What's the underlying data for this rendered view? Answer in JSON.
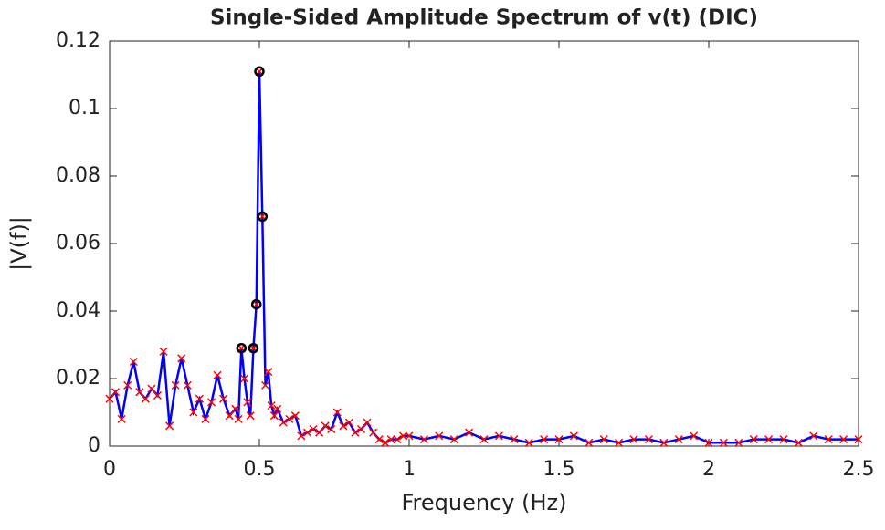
{
  "chart_data": {
    "type": "line",
    "title": "Single-Sided Amplitude Spectrum of v(t) (DIC)",
    "xlabel": "Frequency (Hz)",
    "ylabel": "|V(f)|",
    "x": [
      0,
      0.02,
      0.04,
      0.06,
      0.08,
      0.1,
      0.12,
      0.14,
      0.16,
      0.18,
      0.2,
      0.22,
      0.24,
      0.26,
      0.28,
      0.3,
      0.32,
      0.34,
      0.36,
      0.38,
      0.4,
      0.42,
      0.43,
      0.44,
      0.45,
      0.46,
      0.47,
      0.48,
      0.49,
      0.5,
      0.51,
      0.52,
      0.53,
      0.54,
      0.55,
      0.56,
      0.58,
      0.6,
      0.62,
      0.64,
      0.66,
      0.68,
      0.7,
      0.72,
      0.74,
      0.76,
      0.78,
      0.8,
      0.82,
      0.84,
      0.86,
      0.88,
      0.9,
      0.92,
      0.94,
      0.96,
      0.98,
      1,
      1.05,
      1.1,
      1.15,
      1.2,
      1.25,
      1.3,
      1.35,
      1.4,
      1.45,
      1.5,
      1.55,
      1.6,
      1.65,
      1.7,
      1.75,
      1.8,
      1.85,
      1.9,
      1.95,
      2,
      2.05,
      2.1,
      2.15,
      2.2,
      2.25,
      2.3,
      2.35,
      2.4,
      2.45,
      2.5
    ],
    "series": [
      {
        "color": "#0000ff",
        "marker_color": "#ff0000",
        "values": [
          0.014,
          0.016,
          0.008,
          0.018,
          0.025,
          0.016,
          0.014,
          0.017,
          0.015,
          0.028,
          0.006,
          0.018,
          0.026,
          0.018,
          0.01,
          0.014,
          0.008,
          0.013,
          0.021,
          0.014,
          0.009,
          0.011,
          0.008,
          0.029,
          0.02,
          0.013,
          0.009,
          0.029,
          0.042,
          0.111,
          0.068,
          0.018,
          0.022,
          0.012,
          0.009,
          0.011,
          0.007,
          0.008,
          0.009,
          0.003,
          0.004,
          0.005,
          0.004,
          0.006,
          0.005,
          0.01,
          0.006,
          0.007,
          0.004,
          0.005,
          0.007,
          0.004,
          0.002,
          0.001,
          0.002,
          0.002,
          0.003,
          0.003,
          0.002,
          0.003,
          0.002,
          0.004,
          0.002,
          0.003,
          0.002,
          0.001,
          0.002,
          0.002,
          0.003,
          0.001,
          0.002,
          0.001,
          0.002,
          0.002,
          0.001,
          0.002,
          0.003,
          0.001,
          0.001,
          0.001,
          0.002,
          0.002,
          0.002,
          0.001,
          0.003,
          0.002,
          0.002,
          0.002
        ]
      }
    ],
    "highlight_x": [
      0.44,
      0.48,
      0.49,
      0.5,
      0.51
    ],
    "highlight_values": [
      0.029,
      0.029,
      0.042,
      0.111,
      0.068
    ],
    "highlight_color": "#000000",
    "xlim": [
      0,
      2.5
    ],
    "ylim": [
      0,
      0.12
    ],
    "xticks": [
      0,
      0.5,
      1,
      1.5,
      2,
      2.5
    ],
    "yticks": [
      0,
      0.02,
      0.04,
      0.06,
      0.08,
      0.1,
      0.12
    ]
  }
}
